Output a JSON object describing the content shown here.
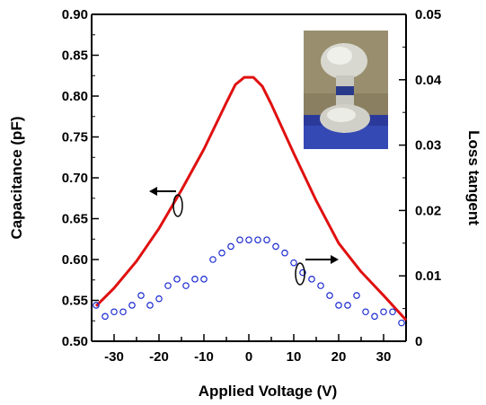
{
  "chart_data": {
    "type": "line",
    "title": "",
    "xlabel": "Applied Voltage (V)",
    "ylabel_left": "Capacitance (pF)",
    "ylabel_right": "Loss tangent",
    "xlim": [
      -35,
      35
    ],
    "ylim_left": [
      0.5,
      0.9
    ],
    "ylim_right": [
      0,
      0.05
    ],
    "x_ticks": [
      -30,
      -20,
      -10,
      0,
      10,
      20,
      30
    ],
    "y_left_ticks": [
      "0.50",
      "0.55",
      "0.60",
      "0.65",
      "0.70",
      "0.75",
      "0.80",
      "0.85",
      "0.90"
    ],
    "y_right_ticks": [
      "0",
      "0.01",
      "0.02",
      "0.03",
      "0.04",
      "0.05"
    ],
    "grid": false,
    "series": [
      {
        "axis": "left",
        "style": "line",
        "color": "#e01010",
        "x": [
          -34,
          -30,
          -25,
          -20,
          -15,
          -10,
          -5,
          -3,
          -1,
          1,
          3,
          5,
          10,
          15,
          20,
          25,
          30,
          35
        ],
        "y": [
          0.543,
          0.565,
          0.598,
          0.638,
          0.685,
          0.735,
          0.792,
          0.814,
          0.823,
          0.823,
          0.812,
          0.79,
          0.73,
          0.672,
          0.62,
          0.585,
          0.556,
          0.526
        ]
      },
      {
        "axis": "right",
        "style": "markers",
        "marker": "open-circle",
        "color": "#1a2ad0",
        "x": [
          -34,
          -32,
          -30,
          -28,
          -26,
          -24,
          -22,
          -20,
          -18,
          -16,
          -14,
          -12,
          -10,
          -8,
          -6,
          -4,
          -2,
          0,
          2,
          4,
          6,
          8,
          10,
          12,
          14,
          16,
          18,
          20,
          22,
          24,
          26,
          28,
          30,
          32,
          34
        ],
        "y": [
          0.0055,
          0.0038,
          0.0045,
          0.0045,
          0.0055,
          0.007,
          0.0055,
          0.0065,
          0.0085,
          0.0095,
          0.0085,
          0.0095,
          0.0095,
          0.0125,
          0.0135,
          0.0145,
          0.0155,
          0.0155,
          0.0155,
          0.0155,
          0.0145,
          0.0135,
          0.012,
          0.0105,
          0.0095,
          0.0085,
          0.007,
          0.0055,
          0.0055,
          0.007,
          0.0045,
          0.0038,
          0.0045,
          0.0045,
          0.0028
        ]
      }
    ],
    "annotations": [
      {
        "type": "arrow",
        "direction": "left",
        "target_axis": "left",
        "label": ""
      },
      {
        "type": "arrow",
        "direction": "right",
        "target_axis": "right",
        "label": ""
      }
    ],
    "inset_image": "device-photo"
  }
}
